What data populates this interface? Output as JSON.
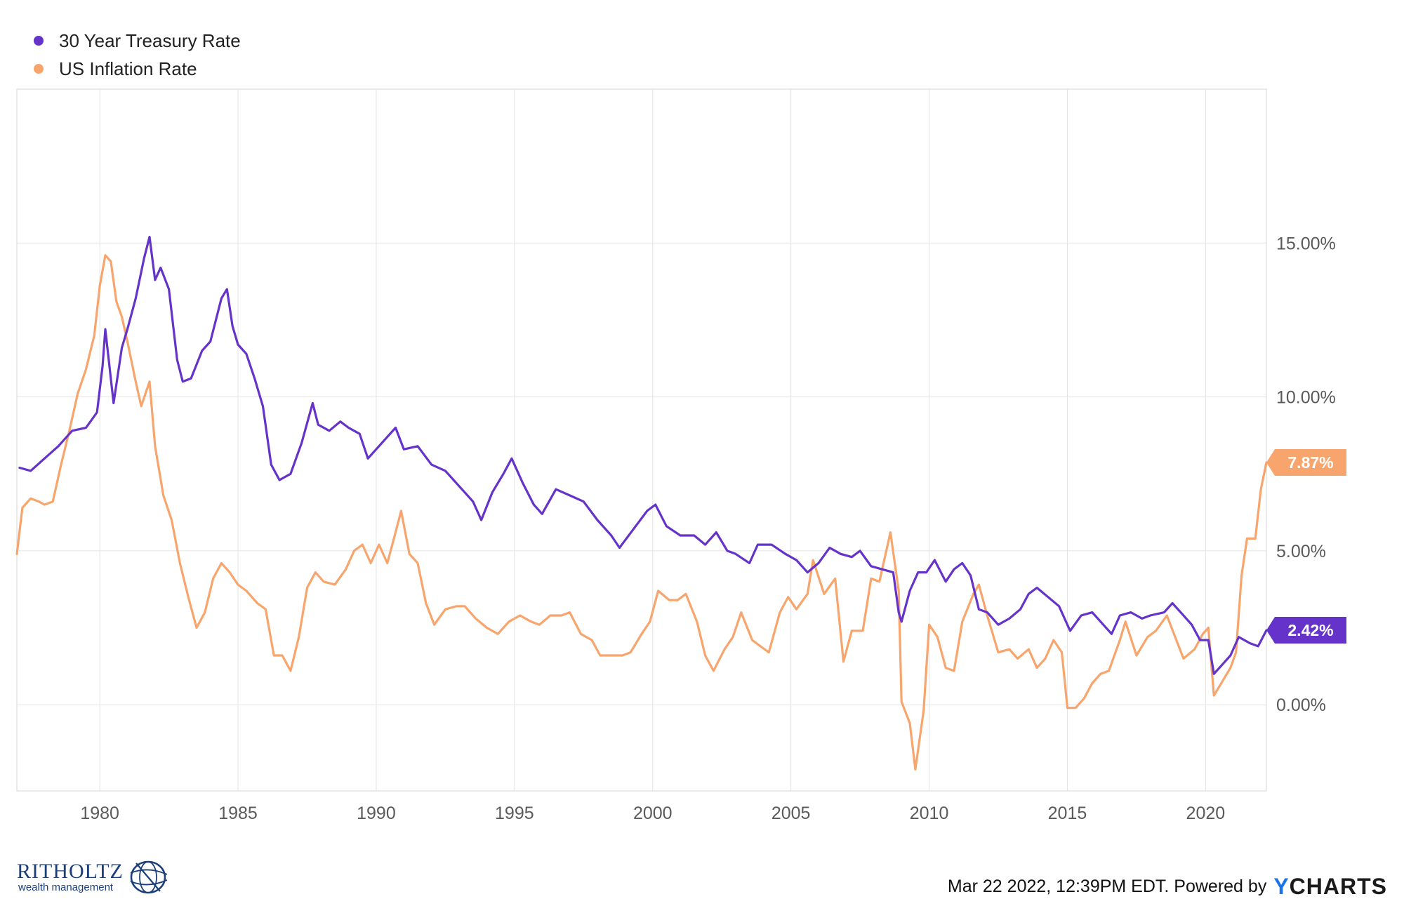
{
  "legend": {
    "items": [
      {
        "label": "30 Year Treasury Rate",
        "color": "#6533c9"
      },
      {
        "label": "US Inflation Rate",
        "color": "#f8a56d"
      }
    ]
  },
  "chart_data": {
    "type": "line",
    "title": "",
    "xlabel": "",
    "ylabel": "",
    "xlim": [
      1977.0,
      2022.2
    ],
    "ylim": [
      -2.8,
      20.0
    ],
    "x_ticks": [
      "1980",
      "1985",
      "1990",
      "1995",
      "2000",
      "2005",
      "2010",
      "2015",
      "2020"
    ],
    "y_ticks": [
      "0.00%",
      "5.00%",
      "10.00%",
      "15.00%"
    ],
    "grid": true,
    "legend_position": "top-left",
    "series": [
      {
        "name": "30 Year Treasury Rate",
        "color": "#6533c9",
        "last_value_label": "2.42%",
        "points": [
          [
            1977.1,
            7.7
          ],
          [
            1977.5,
            7.6
          ],
          [
            1978.0,
            8.0
          ],
          [
            1978.5,
            8.4
          ],
          [
            1979.0,
            8.9
          ],
          [
            1979.5,
            9.0
          ],
          [
            1979.9,
            9.5
          ],
          [
            1980.1,
            11.0
          ],
          [
            1980.2,
            12.2
          ],
          [
            1980.5,
            9.8
          ],
          [
            1980.8,
            11.6
          ],
          [
            1981.0,
            12.2
          ],
          [
            1981.3,
            13.2
          ],
          [
            1981.6,
            14.5
          ],
          [
            1981.8,
            15.2
          ],
          [
            1982.0,
            13.8
          ],
          [
            1982.2,
            14.2
          ],
          [
            1982.5,
            13.5
          ],
          [
            1982.8,
            11.2
          ],
          [
            1983.0,
            10.5
          ],
          [
            1983.3,
            10.6
          ],
          [
            1983.7,
            11.5
          ],
          [
            1984.0,
            11.8
          ],
          [
            1984.4,
            13.2
          ],
          [
            1984.6,
            13.5
          ],
          [
            1984.8,
            12.3
          ],
          [
            1985.0,
            11.7
          ],
          [
            1985.3,
            11.4
          ],
          [
            1985.6,
            10.6
          ],
          [
            1985.9,
            9.7
          ],
          [
            1986.2,
            7.8
          ],
          [
            1986.5,
            7.3
          ],
          [
            1986.9,
            7.5
          ],
          [
            1987.3,
            8.5
          ],
          [
            1987.7,
            9.8
          ],
          [
            1987.9,
            9.1
          ],
          [
            1988.3,
            8.9
          ],
          [
            1988.7,
            9.2
          ],
          [
            1989.0,
            9.0
          ],
          [
            1989.4,
            8.8
          ],
          [
            1989.7,
            8.0
          ],
          [
            1990.0,
            8.3
          ],
          [
            1990.4,
            8.7
          ],
          [
            1990.7,
            9.0
          ],
          [
            1991.0,
            8.3
          ],
          [
            1991.5,
            8.4
          ],
          [
            1992.0,
            7.8
          ],
          [
            1992.5,
            7.6
          ],
          [
            1993.0,
            7.1
          ],
          [
            1993.5,
            6.6
          ],
          [
            1993.8,
            6.0
          ],
          [
            1994.2,
            6.9
          ],
          [
            1994.6,
            7.5
          ],
          [
            1994.9,
            8.0
          ],
          [
            1995.3,
            7.2
          ],
          [
            1995.7,
            6.5
          ],
          [
            1996.0,
            6.2
          ],
          [
            1996.5,
            7.0
          ],
          [
            1997.0,
            6.8
          ],
          [
            1997.5,
            6.6
          ],
          [
            1998.0,
            6.0
          ],
          [
            1998.5,
            5.5
          ],
          [
            1998.8,
            5.1
          ],
          [
            1999.3,
            5.7
          ],
          [
            1999.8,
            6.3
          ],
          [
            2000.1,
            6.5
          ],
          [
            2000.5,
            5.8
          ],
          [
            2001.0,
            5.5
          ],
          [
            2001.5,
            5.5
          ],
          [
            2001.9,
            5.2
          ],
          [
            2002.3,
            5.6
          ],
          [
            2002.7,
            5.0
          ],
          [
            2003.0,
            4.9
          ],
          [
            2003.5,
            4.6
          ],
          [
            2003.8,
            5.2
          ],
          [
            2004.3,
            5.2
          ],
          [
            2004.8,
            4.9
          ],
          [
            2005.2,
            4.7
          ],
          [
            2005.6,
            4.3
          ],
          [
            2006.0,
            4.6
          ],
          [
            2006.4,
            5.1
          ],
          [
            2006.8,
            4.9
          ],
          [
            2007.2,
            4.8
          ],
          [
            2007.5,
            5.0
          ],
          [
            2007.9,
            4.5
          ],
          [
            2008.3,
            4.4
          ],
          [
            2008.7,
            4.3
          ],
          [
            2008.9,
            3.0
          ],
          [
            2009.0,
            2.7
          ],
          [
            2009.3,
            3.7
          ],
          [
            2009.6,
            4.3
          ],
          [
            2009.9,
            4.3
          ],
          [
            2010.2,
            4.7
          ],
          [
            2010.6,
            4.0
          ],
          [
            2010.9,
            4.4
          ],
          [
            2011.2,
            4.6
          ],
          [
            2011.5,
            4.2
          ],
          [
            2011.8,
            3.1
          ],
          [
            2012.1,
            3.0
          ],
          [
            2012.5,
            2.6
          ],
          [
            2012.9,
            2.8
          ],
          [
            2013.3,
            3.1
          ],
          [
            2013.6,
            3.6
          ],
          [
            2013.9,
            3.8
          ],
          [
            2014.3,
            3.5
          ],
          [
            2014.7,
            3.2
          ],
          [
            2014.9,
            2.8
          ],
          [
            2015.1,
            2.4
          ],
          [
            2015.5,
            2.9
          ],
          [
            2015.9,
            3.0
          ],
          [
            2016.3,
            2.6
          ],
          [
            2016.6,
            2.3
          ],
          [
            2016.9,
            2.9
          ],
          [
            2017.3,
            3.0
          ],
          [
            2017.7,
            2.8
          ],
          [
            2018.0,
            2.9
          ],
          [
            2018.5,
            3.0
          ],
          [
            2018.8,
            3.3
          ],
          [
            2019.1,
            3.0
          ],
          [
            2019.5,
            2.6
          ],
          [
            2019.8,
            2.1
          ],
          [
            2020.1,
            2.1
          ],
          [
            2020.3,
            1.0
          ],
          [
            2020.6,
            1.3
          ],
          [
            2020.9,
            1.6
          ],
          [
            2021.2,
            2.2
          ],
          [
            2021.6,
            2.0
          ],
          [
            2021.9,
            1.9
          ],
          [
            2022.2,
            2.42
          ]
        ]
      },
      {
        "name": "US Inflation Rate",
        "color": "#f8a56d",
        "last_value_label": "7.87%",
        "points": [
          [
            1977.0,
            4.9
          ],
          [
            1977.2,
            6.4
          ],
          [
            1977.5,
            6.7
          ],
          [
            1977.8,
            6.6
          ],
          [
            1978.0,
            6.5
          ],
          [
            1978.3,
            6.6
          ],
          [
            1978.6,
            7.8
          ],
          [
            1978.9,
            8.9
          ],
          [
            1979.2,
            10.1
          ],
          [
            1979.5,
            10.9
          ],
          [
            1979.8,
            12.0
          ],
          [
            1980.0,
            13.6
          ],
          [
            1980.2,
            14.6
          ],
          [
            1980.4,
            14.4
          ],
          [
            1980.6,
            13.1
          ],
          [
            1980.8,
            12.6
          ],
          [
            1981.0,
            11.8
          ],
          [
            1981.3,
            10.5
          ],
          [
            1981.5,
            9.7
          ],
          [
            1981.8,
            10.5
          ],
          [
            1982.0,
            8.4
          ],
          [
            1982.3,
            6.8
          ],
          [
            1982.6,
            6.0
          ],
          [
            1982.9,
            4.6
          ],
          [
            1983.2,
            3.5
          ],
          [
            1983.5,
            2.5
          ],
          [
            1983.8,
            3.0
          ],
          [
            1984.1,
            4.1
          ],
          [
            1984.4,
            4.6
          ],
          [
            1984.7,
            4.3
          ],
          [
            1985.0,
            3.9
          ],
          [
            1985.3,
            3.7
          ],
          [
            1985.7,
            3.3
          ],
          [
            1986.0,
            3.1
          ],
          [
            1986.3,
            1.6
          ],
          [
            1986.6,
            1.6
          ],
          [
            1986.9,
            1.1
          ],
          [
            1987.2,
            2.2
          ],
          [
            1987.5,
            3.8
          ],
          [
            1987.8,
            4.3
          ],
          [
            1988.1,
            4.0
          ],
          [
            1988.5,
            3.9
          ],
          [
            1988.9,
            4.4
          ],
          [
            1989.2,
            5.0
          ],
          [
            1989.5,
            5.2
          ],
          [
            1989.8,
            4.6
          ],
          [
            1990.1,
            5.2
          ],
          [
            1990.4,
            4.6
          ],
          [
            1990.7,
            5.6
          ],
          [
            1990.9,
            6.3
          ],
          [
            1991.2,
            4.9
          ],
          [
            1991.5,
            4.6
          ],
          [
            1991.8,
            3.3
          ],
          [
            1992.1,
            2.6
          ],
          [
            1992.5,
            3.1
          ],
          [
            1992.9,
            3.2
          ],
          [
            1993.2,
            3.2
          ],
          [
            1993.6,
            2.8
          ],
          [
            1994.0,
            2.5
          ],
          [
            1994.4,
            2.3
          ],
          [
            1994.8,
            2.7
          ],
          [
            1995.2,
            2.9
          ],
          [
            1995.6,
            2.7
          ],
          [
            1995.9,
            2.6
          ],
          [
            1996.3,
            2.9
          ],
          [
            1996.7,
            2.9
          ],
          [
            1997.0,
            3.0
          ],
          [
            1997.4,
            2.3
          ],
          [
            1997.8,
            2.1
          ],
          [
            1998.1,
            1.6
          ],
          [
            1998.5,
            1.6
          ],
          [
            1998.9,
            1.6
          ],
          [
            1999.2,
            1.7
          ],
          [
            1999.6,
            2.3
          ],
          [
            1999.9,
            2.7
          ],
          [
            2000.2,
            3.7
          ],
          [
            2000.6,
            3.4
          ],
          [
            2000.9,
            3.4
          ],
          [
            2001.2,
            3.6
          ],
          [
            2001.6,
            2.7
          ],
          [
            2001.9,
            1.6
          ],
          [
            2002.2,
            1.1
          ],
          [
            2002.6,
            1.8
          ],
          [
            2002.9,
            2.2
          ],
          [
            2003.2,
            3.0
          ],
          [
            2003.6,
            2.1
          ],
          [
            2003.9,
            1.9
          ],
          [
            2004.2,
            1.7
          ],
          [
            2004.6,
            3.0
          ],
          [
            2004.9,
            3.5
          ],
          [
            2005.2,
            3.1
          ],
          [
            2005.6,
            3.6
          ],
          [
            2005.8,
            4.7
          ],
          [
            2006.2,
            3.6
          ],
          [
            2006.6,
            4.1
          ],
          [
            2006.9,
            1.4
          ],
          [
            2007.2,
            2.4
          ],
          [
            2007.6,
            2.4
          ],
          [
            2007.9,
            4.1
          ],
          [
            2008.2,
            4.0
          ],
          [
            2008.6,
            5.6
          ],
          [
            2008.9,
            3.7
          ],
          [
            2009.0,
            0.1
          ],
          [
            2009.3,
            -0.6
          ],
          [
            2009.5,
            -2.1
          ],
          [
            2009.8,
            -0.2
          ],
          [
            2010.0,
            2.6
          ],
          [
            2010.3,
            2.2
          ],
          [
            2010.6,
            1.2
          ],
          [
            2010.9,
            1.1
          ],
          [
            2011.2,
            2.7
          ],
          [
            2011.6,
            3.6
          ],
          [
            2011.8,
            3.9
          ],
          [
            2012.1,
            2.9
          ],
          [
            2012.5,
            1.7
          ],
          [
            2012.9,
            1.8
          ],
          [
            2013.2,
            1.5
          ],
          [
            2013.6,
            1.8
          ],
          [
            2013.9,
            1.2
          ],
          [
            2014.2,
            1.5
          ],
          [
            2014.5,
            2.1
          ],
          [
            2014.8,
            1.7
          ],
          [
            2015.0,
            -0.1
          ],
          [
            2015.3,
            -0.1
          ],
          [
            2015.6,
            0.2
          ],
          [
            2015.9,
            0.7
          ],
          [
            2016.2,
            1.0
          ],
          [
            2016.5,
            1.1
          ],
          [
            2016.9,
            2.1
          ],
          [
            2017.1,
            2.7
          ],
          [
            2017.5,
            1.6
          ],
          [
            2017.9,
            2.2
          ],
          [
            2018.2,
            2.4
          ],
          [
            2018.6,
            2.9
          ],
          [
            2018.9,
            2.2
          ],
          [
            2019.2,
            1.5
          ],
          [
            2019.6,
            1.8
          ],
          [
            2019.9,
            2.3
          ],
          [
            2020.1,
            2.5
          ],
          [
            2020.3,
            0.3
          ],
          [
            2020.5,
            0.6
          ],
          [
            2020.9,
            1.2
          ],
          [
            2021.1,
            1.7
          ],
          [
            2021.3,
            4.2
          ],
          [
            2021.5,
            5.4
          ],
          [
            2021.8,
            5.4
          ],
          [
            2022.0,
            7.0
          ],
          [
            2022.2,
            7.87
          ]
        ]
      }
    ]
  },
  "footer": {
    "logo_name": "RITHOLTZ",
    "logo_sub": "wealth management",
    "timestamp": "Mar 22 2022, 12:39PM EDT. Powered by",
    "brand_y": "Y",
    "brand_rest": "CHARTS"
  }
}
